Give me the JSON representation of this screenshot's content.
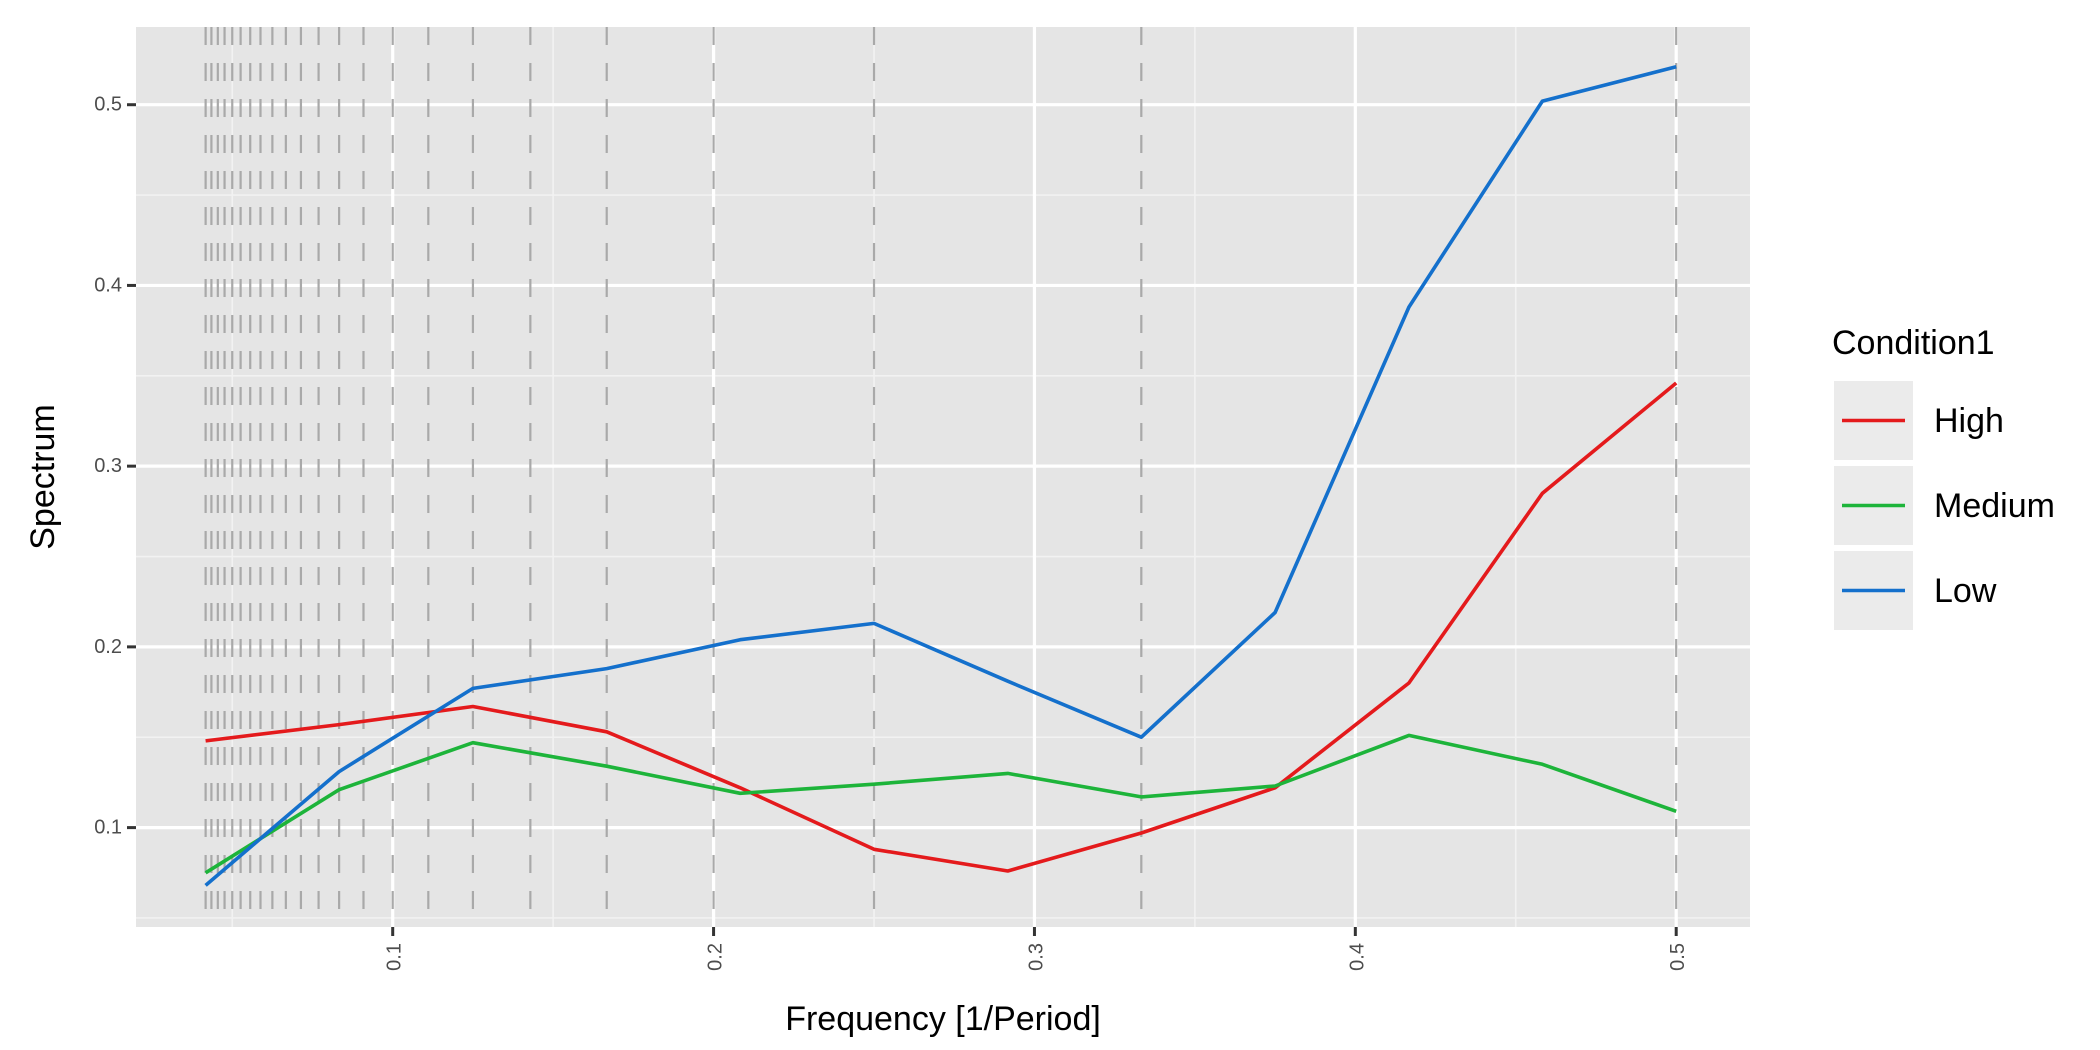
{
  "chart_data": {
    "type": "line",
    "title": "",
    "xlabel": "Frequency [1/Period]",
    "ylabel": "Spectrum",
    "xlim": [
      0.02,
      0.523
    ],
    "ylim": [
      0.045,
      0.543
    ],
    "x_ticks": [
      0.1,
      0.2,
      0.3,
      0.4,
      0.5
    ],
    "x_tick_labels": [
      "0.1",
      "0.2",
      "0.3",
      "0.4",
      "0.5"
    ],
    "y_ticks": [
      0.1,
      0.2,
      0.3,
      0.4,
      0.5
    ],
    "y_tick_labels": [
      "0.1",
      "0.2",
      "0.3",
      "0.4",
      "0.5"
    ],
    "grid": true,
    "legend": {
      "title": "Condition1",
      "placement": "right",
      "entries": [
        "High",
        "Medium",
        "Low"
      ]
    },
    "reference_lines_x": [
      0.0417,
      0.0435,
      0.0455,
      0.0476,
      0.05,
      0.0526,
      0.0556,
      0.0588,
      0.0625,
      0.0667,
      0.0714,
      0.0769,
      0.0833,
      0.0909,
      0.1,
      0.1111,
      0.125,
      0.1429,
      0.1667,
      0.2,
      0.25,
      0.3333,
      0.5
    ],
    "series": [
      {
        "name": "High",
        "color": "#e41a1c",
        "x": [
          0.0417,
          0.0833,
          0.125,
          0.1667,
          0.2083,
          0.25,
          0.2917,
          0.3333,
          0.375,
          0.4167,
          0.4583,
          0.5
        ],
        "values": [
          0.148,
          0.157,
          0.167,
          0.153,
          0.122,
          0.088,
          0.076,
          0.097,
          0.122,
          0.18,
          0.285,
          0.346
        ]
      },
      {
        "name": "Medium",
        "color": "#1db43a",
        "x": [
          0.0417,
          0.0833,
          0.125,
          0.1667,
          0.2083,
          0.25,
          0.2917,
          0.3333,
          0.375,
          0.4167,
          0.4583,
          0.5
        ],
        "values": [
          0.075,
          0.121,
          0.147,
          0.134,
          0.119,
          0.124,
          0.13,
          0.117,
          0.123,
          0.151,
          0.135,
          0.109
        ]
      },
      {
        "name": "Low",
        "color": "#1470cc",
        "x": [
          0.0417,
          0.0833,
          0.125,
          0.1667,
          0.2083,
          0.25,
          0.2917,
          0.3333,
          0.375,
          0.4167,
          0.4583,
          0.5
        ],
        "values": [
          0.068,
          0.131,
          0.177,
          0.188,
          0.204,
          0.213,
          0.181,
          0.15,
          0.219,
          0.388,
          0.502,
          0.521
        ]
      }
    ]
  }
}
